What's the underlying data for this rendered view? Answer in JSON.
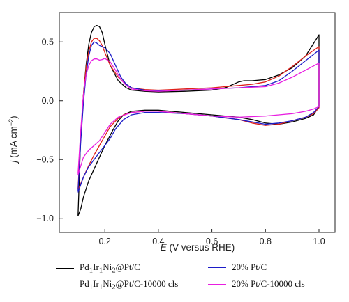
{
  "chart_data": {
    "type": "line",
    "title": "",
    "xlabel": "E (V versus RHE)",
    "xlabel_italic": "E",
    "xlabel_rest": " (V versus RHE)",
    "ylabel": "j (mA cm⁻²)",
    "ylabel_italic": "j",
    "ylabel_rest": " (mA cm",
    "ylabel_exp": "−2",
    "ylabel_close": ")",
    "xlim": [
      0.03,
      1.06
    ],
    "ylim": [
      -1.12,
      0.75
    ],
    "xticks": [
      0.2,
      0.4,
      0.6,
      0.8,
      1.0
    ],
    "xtick_labels": [
      "0.2",
      "0.4",
      "0.6",
      "0.8",
      "1.0"
    ],
    "yticks": [
      -1.0,
      -0.5,
      0.0,
      0.5
    ],
    "ytick_labels": [
      "−1.0",
      "−0.5",
      "0.0",
      "0.5"
    ],
    "grid": false,
    "legend_position": "bottom",
    "series": [
      {
        "name": "Pd1Ir1Ni2@Pt/C",
        "name_html": "Pd<sub>1</sub>Ir<sub>1</sub>Ni<sub>2</sub>@Pt/C",
        "color": "#000000",
        "x": [
          0.1,
          0.11,
          0.12,
          0.13,
          0.14,
          0.15,
          0.16,
          0.17,
          0.18,
          0.19,
          0.2,
          0.22,
          0.25,
          0.28,
          0.3,
          0.35,
          0.4,
          0.5,
          0.6,
          0.65,
          0.7,
          0.72,
          0.75,
          0.8,
          0.85,
          0.9,
          0.95,
          1.0,
          1.0,
          0.98,
          0.95,
          0.9,
          0.85,
          0.8,
          0.75,
          0.7,
          0.6,
          0.5,
          0.4,
          0.35,
          0.3,
          0.27,
          0.25,
          0.23,
          0.2,
          0.18,
          0.16,
          0.14,
          0.12,
          0.11,
          0.1
        ],
        "y": [
          -0.98,
          -0.3,
          0.05,
          0.3,
          0.48,
          0.58,
          0.63,
          0.64,
          0.63,
          0.58,
          0.48,
          0.3,
          0.17,
          0.11,
          0.09,
          0.08,
          0.075,
          0.08,
          0.09,
          0.11,
          0.16,
          0.17,
          0.17,
          0.18,
          0.22,
          0.28,
          0.38,
          0.56,
          -0.05,
          -0.12,
          -0.15,
          -0.18,
          -0.2,
          -0.19,
          -0.16,
          -0.14,
          -0.12,
          -0.1,
          -0.08,
          -0.08,
          -0.09,
          -0.12,
          -0.17,
          -0.25,
          -0.38,
          -0.48,
          -0.58,
          -0.68,
          -0.82,
          -0.92,
          -0.98
        ]
      },
      {
        "name": "Pd1Ir1Ni2@Pt/C-10000 cls",
        "name_html": "Pd<sub>1</sub>Ir<sub>1</sub>Ni<sub>2</sub>@Pt/C-10000 cls",
        "color": "#e0201b",
        "x": [
          0.1,
          0.11,
          0.12,
          0.13,
          0.14,
          0.15,
          0.16,
          0.17,
          0.18,
          0.19,
          0.2,
          0.22,
          0.25,
          0.28,
          0.3,
          0.35,
          0.4,
          0.5,
          0.6,
          0.7,
          0.75,
          0.8,
          0.85,
          0.9,
          0.95,
          1.0,
          1.0,
          0.98,
          0.95,
          0.9,
          0.85,
          0.8,
          0.75,
          0.7,
          0.6,
          0.5,
          0.4,
          0.35,
          0.3,
          0.27,
          0.25,
          0.22,
          0.2,
          0.18,
          0.16,
          0.14,
          0.12,
          0.1
        ],
        "y": [
          -0.75,
          -0.3,
          0.05,
          0.28,
          0.42,
          0.5,
          0.53,
          0.53,
          0.51,
          0.47,
          0.41,
          0.3,
          0.2,
          0.14,
          0.11,
          0.095,
          0.09,
          0.1,
          0.11,
          0.13,
          0.14,
          0.16,
          0.21,
          0.29,
          0.38,
          0.46,
          -0.06,
          -0.11,
          -0.14,
          -0.17,
          -0.2,
          -0.21,
          -0.19,
          -0.16,
          -0.13,
          -0.11,
          -0.09,
          -0.09,
          -0.1,
          -0.12,
          -0.15,
          -0.22,
          -0.3,
          -0.38,
          -0.46,
          -0.55,
          -0.65,
          -0.76
        ]
      },
      {
        "name": "20% Pt/C",
        "name_html": "20% Pt/C",
        "color": "#1c1cc8",
        "x": [
          0.1,
          0.11,
          0.12,
          0.13,
          0.14,
          0.15,
          0.16,
          0.17,
          0.18,
          0.2,
          0.22,
          0.24,
          0.26,
          0.28,
          0.3,
          0.35,
          0.4,
          0.5,
          0.6,
          0.7,
          0.8,
          0.85,
          0.9,
          0.95,
          1.0,
          1.0,
          0.98,
          0.95,
          0.9,
          0.85,
          0.8,
          0.75,
          0.7,
          0.6,
          0.5,
          0.4,
          0.35,
          0.3,
          0.27,
          0.24,
          0.22,
          0.2,
          0.18,
          0.16,
          0.14,
          0.12,
          0.1
        ],
        "y": [
          -0.77,
          -0.35,
          -0.02,
          0.22,
          0.38,
          0.47,
          0.5,
          0.49,
          0.47,
          0.45,
          0.4,
          0.3,
          0.2,
          0.14,
          0.11,
          0.09,
          0.085,
          0.09,
          0.1,
          0.11,
          0.13,
          0.17,
          0.25,
          0.34,
          0.43,
          -0.05,
          -0.1,
          -0.14,
          -0.17,
          -0.19,
          -0.2,
          -0.18,
          -0.16,
          -0.13,
          -0.11,
          -0.1,
          -0.1,
          -0.12,
          -0.16,
          -0.24,
          -0.32,
          -0.38,
          -0.44,
          -0.5,
          -0.56,
          -0.65,
          -0.78
        ]
      },
      {
        "name": "20% Pt/C-10000 cls",
        "name_html": "20% Pt/C-10000 cls",
        "color": "#e81ee0",
        "x": [
          0.1,
          0.11,
          0.12,
          0.13,
          0.14,
          0.15,
          0.16,
          0.17,
          0.18,
          0.19,
          0.2,
          0.22,
          0.24,
          0.26,
          0.28,
          0.3,
          0.35,
          0.4,
          0.5,
          0.6,
          0.7,
          0.8,
          0.85,
          0.9,
          0.95,
          1.0,
          1.0,
          0.98,
          0.95,
          0.9,
          0.85,
          0.8,
          0.7,
          0.6,
          0.5,
          0.4,
          0.35,
          0.3,
          0.25,
          0.22,
          0.2,
          0.18,
          0.16,
          0.14,
          0.12,
          0.1
        ],
        "y": [
          -0.62,
          -0.25,
          0.05,
          0.22,
          0.3,
          0.34,
          0.355,
          0.355,
          0.345,
          0.35,
          0.36,
          0.33,
          0.26,
          0.18,
          0.13,
          0.1,
          0.085,
          0.08,
          0.09,
          0.1,
          0.11,
          0.12,
          0.15,
          0.2,
          0.26,
          0.32,
          -0.05,
          -0.07,
          -0.09,
          -0.11,
          -0.12,
          -0.13,
          -0.14,
          -0.13,
          -0.11,
          -0.09,
          -0.09,
          -0.1,
          -0.14,
          -0.2,
          -0.27,
          -0.34,
          -0.38,
          -0.42,
          -0.48,
          -0.63
        ]
      }
    ]
  }
}
